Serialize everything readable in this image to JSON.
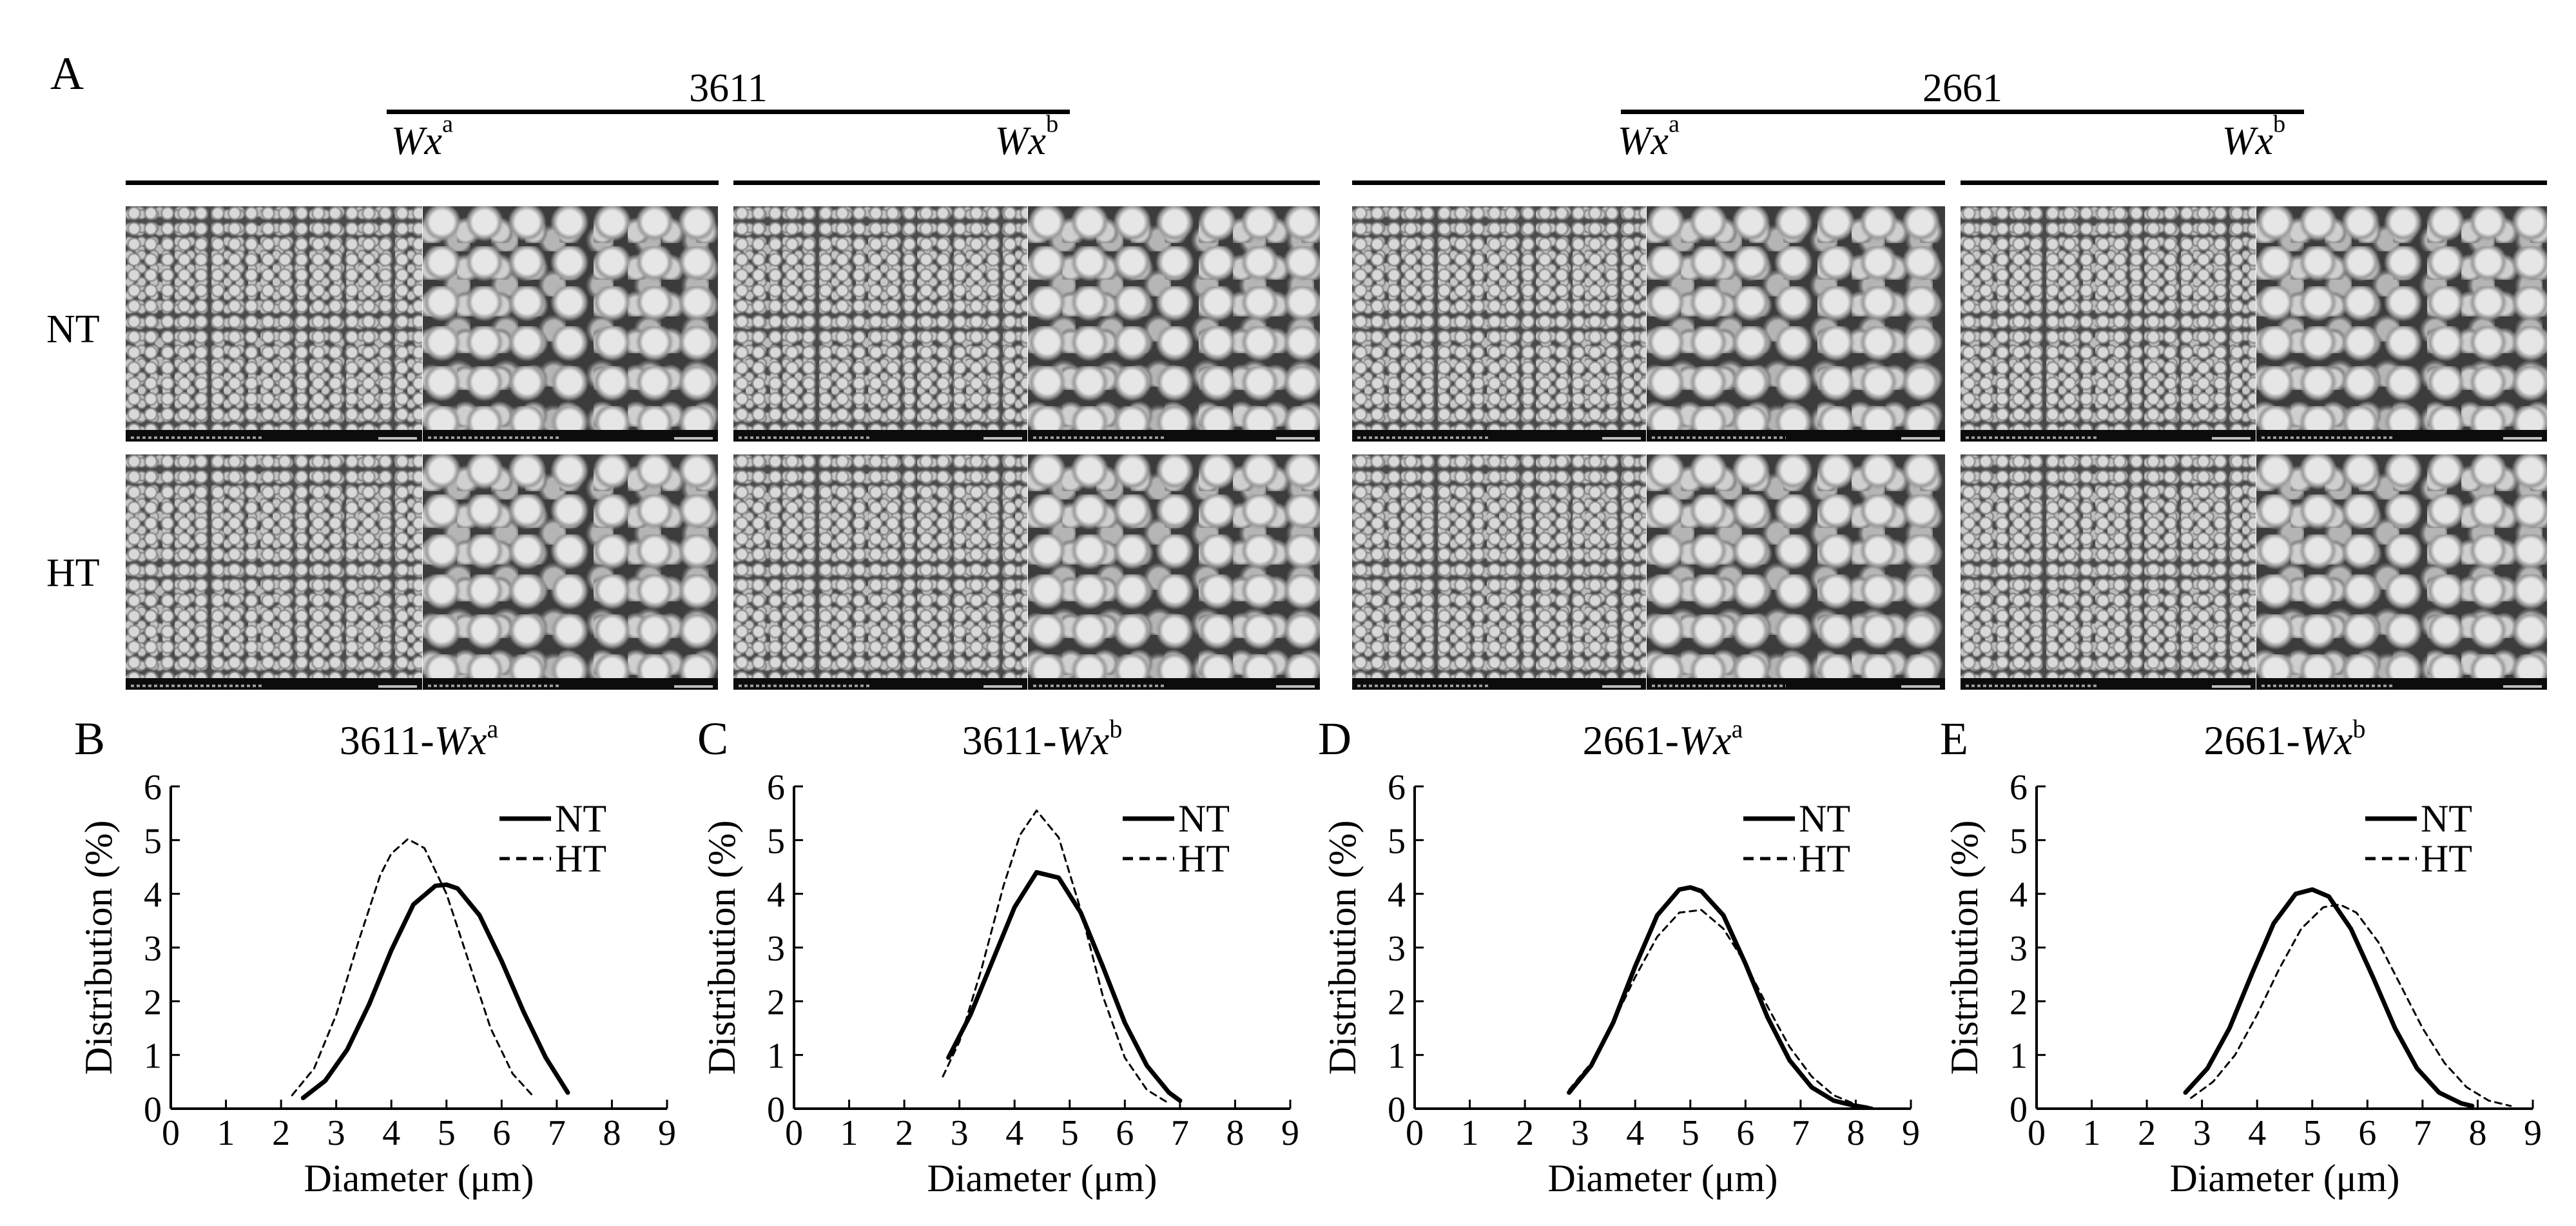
{
  "panel_a": {
    "label": "A",
    "groups": [
      {
        "name": "3611",
        "subs": [
          {
            "wx": "Wx",
            "sup": "a"
          },
          {
            "wx": "Wx",
            "sup": "b"
          }
        ]
      },
      {
        "name": "2661",
        "subs": [
          {
            "wx": "Wx",
            "sup": "a"
          },
          {
            "wx": "Wx",
            "sup": "b"
          }
        ]
      }
    ],
    "row_labels": [
      "NT",
      "HT"
    ]
  },
  "chart_data": [
    {
      "panel": "B",
      "type": "line",
      "title": "3611-",
      "title_wx": "Wx",
      "title_sup": "a",
      "xlabel": "Diameter (μm)",
      "ylabel": "Distribution (%)",
      "xlim": [
        0,
        9
      ],
      "ylim": [
        0,
        6
      ],
      "xticks": [
        "0",
        "1",
        "2",
        "3",
        "4",
        "5",
        "6",
        "7",
        "8",
        "9"
      ],
      "yticks": [
        "0",
        "1",
        "2",
        "3",
        "4",
        "5",
        "6"
      ],
      "legend": [
        "NT",
        "HT"
      ],
      "legend_position": "top-right",
      "series": [
        {
          "name": "NT",
          "style": "solid",
          "x": [
            2.4,
            2.8,
            3.2,
            3.6,
            4.0,
            4.4,
            4.8,
            5.0,
            5.2,
            5.6,
            6.0,
            6.4,
            6.8,
            7.2
          ],
          "y": [
            0.2,
            0.52,
            1.1,
            1.95,
            2.95,
            3.8,
            4.15,
            4.17,
            4.1,
            3.6,
            2.75,
            1.8,
            0.95,
            0.3
          ]
        },
        {
          "name": "HT",
          "style": "dashed",
          "x": [
            2.2,
            2.6,
            3.0,
            3.4,
            3.8,
            4.0,
            4.3,
            4.6,
            5.0,
            5.4,
            5.8,
            6.2,
            6.6
          ],
          "y": [
            0.25,
            0.75,
            1.75,
            3.1,
            4.35,
            4.75,
            5.02,
            4.85,
            4.0,
            2.75,
            1.5,
            0.65,
            0.2
          ]
        }
      ]
    },
    {
      "panel": "C",
      "type": "line",
      "title": "3611-",
      "title_wx": "Wx",
      "title_sup": "b",
      "xlabel": "Diameter (μm)",
      "ylabel": "Distribution (%)",
      "xlim": [
        0,
        9
      ],
      "ylim": [
        0,
        6
      ],
      "xticks": [
        "0",
        "1",
        "2",
        "3",
        "4",
        "5",
        "6",
        "7",
        "8",
        "9"
      ],
      "yticks": [
        "0",
        "1",
        "2",
        "3",
        "4",
        "5",
        "6"
      ],
      "legend": [
        "NT",
        "HT"
      ],
      "legend_position": "top-right",
      "series": [
        {
          "name": "NT",
          "style": "solid",
          "x": [
            2.8,
            3.2,
            3.6,
            4.0,
            4.4,
            4.8,
            5.2,
            5.6,
            6.0,
            6.4,
            6.8,
            7.0
          ],
          "y": [
            0.95,
            1.75,
            2.75,
            3.75,
            4.4,
            4.3,
            3.65,
            2.65,
            1.6,
            0.8,
            0.3,
            0.15
          ]
        },
        {
          "name": "HT",
          "style": "dashed",
          "x": [
            2.7,
            3.0,
            3.4,
            3.8,
            4.1,
            4.4,
            4.8,
            5.2,
            5.6,
            6.0,
            6.4,
            6.8
          ],
          "y": [
            0.6,
            1.25,
            2.6,
            4.15,
            5.1,
            5.55,
            5.05,
            3.7,
            2.1,
            0.95,
            0.35,
            0.1
          ]
        }
      ]
    },
    {
      "panel": "D",
      "type": "line",
      "title": "2661-",
      "title_wx": "Wx",
      "title_sup": "a",
      "xlabel": "Diameter (μm)",
      "ylabel": "Distribution (%)",
      "xlim": [
        0,
        9
      ],
      "ylim": [
        0,
        6
      ],
      "xticks": [
        "0",
        "1",
        "2",
        "3",
        "4",
        "5",
        "6",
        "7",
        "8",
        "9"
      ],
      "yticks": [
        "0",
        "1",
        "2",
        "3",
        "4",
        "5",
        "6"
      ],
      "legend": [
        "NT",
        "HT"
      ],
      "legend_position": "top-right",
      "series": [
        {
          "name": "NT",
          "style": "solid",
          "x": [
            2.8,
            3.2,
            3.6,
            4.0,
            4.4,
            4.8,
            5.0,
            5.2,
            5.6,
            6.0,
            6.4,
            6.8,
            7.2,
            7.6,
            8.0,
            8.2
          ],
          "y": [
            0.3,
            0.8,
            1.6,
            2.65,
            3.6,
            4.08,
            4.12,
            4.05,
            3.6,
            2.7,
            1.7,
            0.9,
            0.4,
            0.15,
            0.05,
            0.02
          ]
        },
        {
          "name": "HT",
          "style": "dashed",
          "x": [
            2.8,
            3.2,
            3.6,
            4.0,
            4.4,
            4.8,
            5.2,
            5.6,
            6.0,
            6.4,
            6.8,
            7.2,
            7.6,
            8.0,
            8.3
          ],
          "y": [
            0.35,
            0.85,
            1.6,
            2.45,
            3.2,
            3.65,
            3.7,
            3.35,
            2.7,
            1.9,
            1.15,
            0.6,
            0.25,
            0.08,
            0.02
          ]
        }
      ]
    },
    {
      "panel": "E",
      "type": "line",
      "title": "2661-",
      "title_wx": "Wx",
      "title_sup": "b",
      "xlabel": "Diameter (μm)",
      "ylabel": "Distribution (%)",
      "xlim": [
        0,
        9
      ],
      "ylim": [
        0,
        6
      ],
      "xticks": [
        "0",
        "1",
        "2",
        "3",
        "4",
        "5",
        "6",
        "7",
        "8",
        "9"
      ],
      "yticks": [
        "0",
        "1",
        "2",
        "3",
        "4",
        "5",
        "6"
      ],
      "legend": [
        "NT",
        "HT"
      ],
      "legend_position": "top-right",
      "series": [
        {
          "name": "NT",
          "style": "solid",
          "x": [
            2.7,
            3.1,
            3.5,
            3.9,
            4.3,
            4.7,
            5.0,
            5.3,
            5.7,
            6.1,
            6.5,
            6.9,
            7.3,
            7.7,
            7.9
          ],
          "y": [
            0.3,
            0.75,
            1.5,
            2.5,
            3.45,
            4.0,
            4.08,
            3.95,
            3.35,
            2.45,
            1.5,
            0.75,
            0.3,
            0.1,
            0.05
          ]
        },
        {
          "name": "HT",
          "style": "dashed",
          "x": [
            2.8,
            3.2,
            3.6,
            4.0,
            4.4,
            4.8,
            5.2,
            5.5,
            5.8,
            6.2,
            6.6,
            7.0,
            7.4,
            7.8,
            8.2,
            8.6
          ],
          "y": [
            0.2,
            0.5,
            1.0,
            1.75,
            2.6,
            3.35,
            3.75,
            3.8,
            3.65,
            3.1,
            2.3,
            1.5,
            0.85,
            0.4,
            0.15,
            0.05
          ]
        }
      ]
    }
  ]
}
